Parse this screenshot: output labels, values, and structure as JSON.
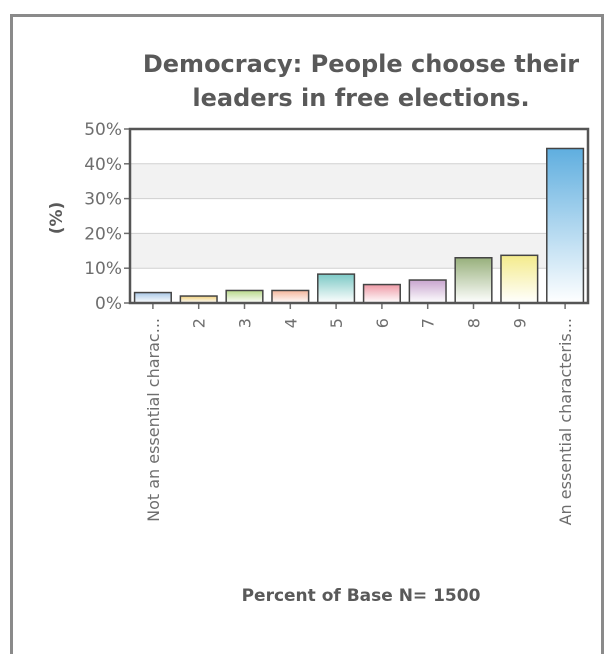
{
  "chart_data": {
    "type": "bar",
    "title_lines": [
      "Democracy: People choose their",
      "leaders in free elections."
    ],
    "ylabel": "(%)",
    "xlabel": "Percent of Base N= 1500",
    "ylim": [
      0,
      50
    ],
    "yticks": [
      "0%",
      "10%",
      "20%",
      "30%",
      "40%",
      "50%"
    ],
    "categories": [
      "Not an essential charac...",
      "2",
      "3",
      "4",
      "5",
      "6",
      "7",
      "8",
      "9",
      "An essential characteris..."
    ],
    "values": [
      3.0,
      2.0,
      3.6,
      3.6,
      8.3,
      5.3,
      6.6,
      13.0,
      13.7,
      44.4
    ],
    "colors": [
      "#a9c8e8",
      "#efcf7a",
      "#b8d98a",
      "#f4b59b",
      "#7cc9c6",
      "#ee9aa6",
      "#c8a5cf",
      "#98b07c",
      "#f4eb8c",
      "#5faedf"
    ],
    "grid": true,
    "legend": "none"
  }
}
